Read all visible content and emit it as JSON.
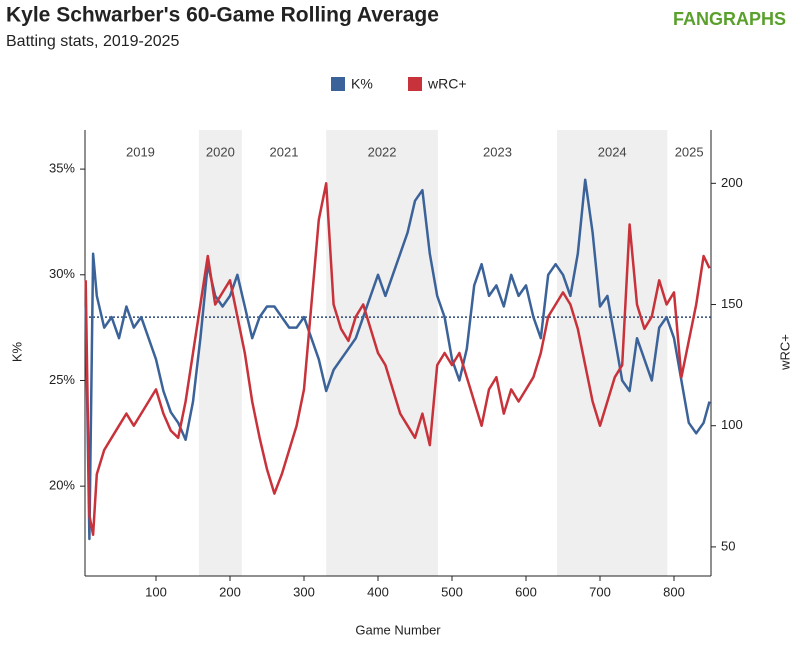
{
  "chart_data": {
    "type": "line",
    "title": "Kyle Schwarber's 60-Game Rolling Average",
    "subtitle": "Batting stats, 2019-2025",
    "logo_text": "FANGRAPHS",
    "xlabel": "Game Number",
    "ylabel": "K%",
    "y2label": "wRC+",
    "xlim": [
      0,
      850
    ],
    "xticks": [
      100,
      200,
      300,
      400,
      500,
      600,
      700,
      800
    ],
    "ylim": [
      15.75,
      36.85
    ],
    "yticks": [
      {
        "value": 20,
        "label": "20%"
      },
      {
        "value": 25,
        "label": "25%"
      },
      {
        "value": 30,
        "label": "30%"
      },
      {
        "value": 35,
        "label": "35%"
      }
    ],
    "y2lim": [
      38,
      222
    ],
    "y2ticks": [
      50,
      100,
      150,
      200
    ],
    "reference_line": 28,
    "seasons": [
      {
        "label": "2019",
        "start": 0,
        "end": 158,
        "shaded": false
      },
      {
        "label": "2020",
        "start": 158,
        "end": 216,
        "shaded": true
      },
      {
        "label": "2021",
        "start": 216,
        "end": 330,
        "shaded": false
      },
      {
        "label": "2022",
        "start": 330,
        "end": 481,
        "shaded": true
      },
      {
        "label": "2023",
        "start": 481,
        "end": 642,
        "shaded": false
      },
      {
        "label": "2024",
        "start": 642,
        "end": 791,
        "shaded": true
      },
      {
        "label": "2025",
        "start": 791,
        "end": 850,
        "shaded": false
      }
    ],
    "x": [
      5,
      10,
      15,
      20,
      30,
      40,
      50,
      60,
      70,
      80,
      90,
      100,
      110,
      120,
      130,
      140,
      150,
      160,
      170,
      180,
      190,
      200,
      210,
      220,
      230,
      240,
      250,
      260,
      270,
      280,
      290,
      300,
      310,
      320,
      330,
      340,
      350,
      360,
      370,
      380,
      390,
      400,
      410,
      420,
      430,
      440,
      450,
      460,
      470,
      480,
      490,
      500,
      510,
      520,
      530,
      540,
      550,
      560,
      570,
      580,
      590,
      600,
      610,
      620,
      630,
      640,
      650,
      660,
      670,
      680,
      690,
      700,
      710,
      720,
      730,
      740,
      750,
      760,
      770,
      780,
      790,
      800,
      810,
      820,
      830,
      840,
      848
    ],
    "series": [
      {
        "name": "K%",
        "color": "#3b6399",
        "axis": "y",
        "values": [
          28.5,
          17.5,
          31,
          29,
          27.5,
          28,
          27,
          28.5,
          27.5,
          28,
          27,
          26,
          24.5,
          23.5,
          23,
          22.2,
          24,
          27,
          30.5,
          29,
          28.5,
          29,
          30,
          28.5,
          27,
          28,
          28.5,
          28.5,
          28,
          27.5,
          27.5,
          28,
          27,
          26,
          24.5,
          25.5,
          26,
          26.5,
          27,
          28,
          29,
          30,
          29,
          30,
          31,
          32,
          33.5,
          34,
          31,
          29,
          28,
          26,
          25,
          26.5,
          29.5,
          30.5,
          29,
          29.5,
          28.5,
          30,
          29,
          29.5,
          28,
          27,
          30,
          30.5,
          30,
          29,
          31,
          34.5,
          32,
          28.5,
          29,
          27,
          25,
          24.5,
          27,
          26,
          25,
          27.5,
          28,
          27,
          25,
          23,
          22.5,
          23,
          24
        ]
      },
      {
        "name": "wRC+",
        "color": "#c8323a",
        "axis": "y2",
        "values": [
          160,
          63,
          55,
          80,
          90,
          95,
          100,
          105,
          100,
          105,
          110,
          115,
          105,
          98,
          95,
          110,
          130,
          150,
          170,
          150,
          155,
          160,
          145,
          130,
          110,
          95,
          82,
          72,
          80,
          90,
          100,
          115,
          150,
          185,
          200,
          150,
          140,
          135,
          145,
          150,
          140,
          130,
          125,
          115,
          105,
          100,
          95,
          105,
          92,
          125,
          130,
          125,
          130,
          120,
          110,
          100,
          115,
          120,
          105,
          115,
          110,
          115,
          120,
          130,
          145,
          150,
          155,
          150,
          140,
          125,
          110,
          100,
          110,
          120,
          125,
          183,
          150,
          140,
          145,
          160,
          150,
          155,
          120,
          135,
          150,
          170,
          165
        ]
      }
    ]
  }
}
